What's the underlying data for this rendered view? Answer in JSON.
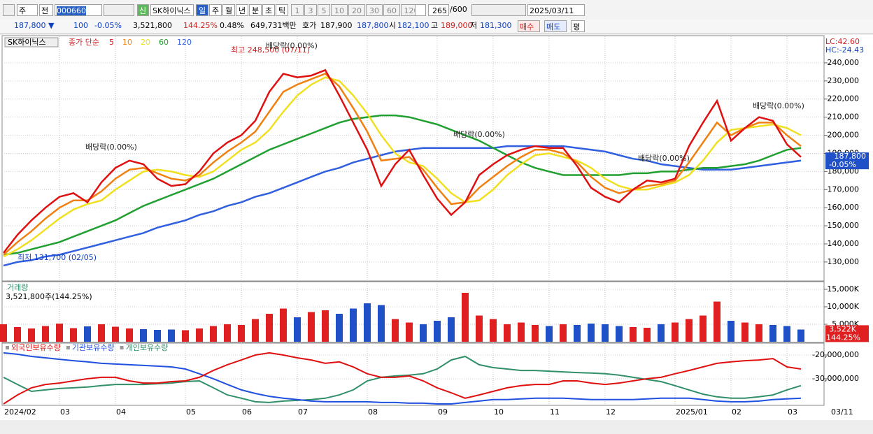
{
  "toolbar": {
    "period": "주",
    "scope": "전",
    "code": "000660",
    "new": "신",
    "name": "SK하이닉스",
    "intervals": [
      "일",
      "주",
      "월",
      "년",
      "분",
      "초",
      "틱"
    ],
    "counts": [
      "1",
      "3",
      "5",
      "10",
      "20",
      "30",
      "60",
      "120"
    ],
    "shown": "265",
    "total": "/600",
    "date": "2025/03/11"
  },
  "quote": {
    "price": "187,800 ▼",
    "change": "100",
    "rate": "-0.05%",
    "volume": "3,521,800",
    "volume_rate": "144.25%",
    "turnover": "0.48%",
    "amount": "649,731백만",
    "bid_label": "호가",
    "bid": "187,900",
    "ask": "187,800",
    "open_label": "시",
    "open": "182,100",
    "high_label": "고",
    "high": "189,000",
    "low_label": "저",
    "low": "181,300",
    "buy": "매수",
    "sell": "매도",
    "eval": "평"
  },
  "chart_data": [
    {
      "type": "line",
      "name": "SK하이닉스",
      "legend_label": "종가 단순",
      "categories": [
        "2024/02",
        null,
        null,
        null,
        "03",
        null,
        null,
        null,
        "04",
        null,
        null,
        null,
        null,
        "05",
        null,
        null,
        null,
        "06",
        null,
        null,
        null,
        "07",
        null,
        null,
        null,
        null,
        "08",
        null,
        null,
        null,
        null,
        "09",
        null,
        null,
        null,
        "10",
        null,
        null,
        null,
        "11",
        null,
        null,
        null,
        "12",
        null,
        null,
        null,
        null,
        "2025/01",
        null,
        null,
        null,
        "02",
        null,
        null,
        null,
        "03",
        null
      ],
      "series": [
        {
          "name": "5",
          "color": "#e01010",
          "values": [
            135000,
            145000,
            153000,
            160000,
            166000,
            168000,
            163000,
            174000,
            182000,
            186000,
            184000,
            176000,
            172000,
            173000,
            180000,
            190000,
            196000,
            200000,
            208000,
            224000,
            234000,
            232000,
            233000,
            236000,
            222000,
            207000,
            192000,
            172000,
            184000,
            192000,
            178000,
            165000,
            156000,
            163000,
            178000,
            184000,
            189000,
            192000,
            194000,
            193000,
            193000,
            183000,
            171000,
            166000,
            163000,
            170000,
            175000,
            174000,
            176000,
            194000,
            207000,
            219000,
            197000,
            204000,
            210000,
            208000,
            195000,
            188000
          ]
        },
        {
          "name": "10",
          "color": "#f08010",
          "values": [
            134000,
            141000,
            147000,
            154000,
            160000,
            164000,
            164000,
            169000,
            176000,
            181000,
            182000,
            179000,
            176000,
            175000,
            178000,
            185000,
            191000,
            196000,
            202000,
            213000,
            224000,
            228000,
            231000,
            234000,
            227000,
            215000,
            202000,
            186000,
            187000,
            188000,
            181000,
            171000,
            162000,
            163000,
            171000,
            177000,
            183000,
            188000,
            192000,
            192000,
            190000,
            185000,
            177000,
            171000,
            168000,
            170000,
            172000,
            173000,
            175000,
            185000,
            196000,
            207000,
            200000,
            204000,
            207000,
            207000,
            200000,
            194000
          ]
        },
        {
          "name": "20",
          "color": "#f0e020",
          "values": [
            133000,
            137000,
            142000,
            148000,
            154000,
            159000,
            162000,
            164000,
            170000,
            175000,
            180000,
            181000,
            180000,
            178000,
            177000,
            180000,
            186000,
            192000,
            196000,
            203000,
            213000,
            222000,
            228000,
            232000,
            230000,
            222000,
            212000,
            200000,
            190000,
            185000,
            183000,
            176000,
            168000,
            163000,
            164000,
            170000,
            178000,
            184000,
            189000,
            190000,
            188000,
            186000,
            182000,
            176000,
            172000,
            170000,
            170000,
            172000,
            174000,
            178000,
            186000,
            196000,
            203000,
            204000,
            205000,
            206000,
            204000,
            200000
          ]
        },
        {
          "name": "60",
          "color": "#20a030",
          "values": [
            134000,
            135000,
            137000,
            139000,
            141000,
            144000,
            147000,
            150000,
            153000,
            157000,
            161000,
            164000,
            167000,
            170000,
            173000,
            176000,
            180000,
            184000,
            188000,
            192000,
            195000,
            198000,
            201000,
            204000,
            207000,
            209000,
            210000,
            211000,
            211000,
            210000,
            208000,
            206000,
            203000,
            200000,
            197000,
            193000,
            189000,
            185000,
            182000,
            180000,
            178000,
            178000,
            178000,
            178000,
            178000,
            179000,
            179000,
            180000,
            180000,
            181000,
            182000,
            182000,
            183000,
            184000,
            186000,
            189000,
            192000,
            193000
          ]
        },
        {
          "name": "120",
          "color": "#3060e0",
          "values": [
            128000,
            130000,
            131000,
            133000,
            134000,
            136000,
            138000,
            140000,
            142000,
            144000,
            146000,
            149000,
            151000,
            153000,
            156000,
            158000,
            161000,
            163000,
            166000,
            168000,
            171000,
            174000,
            177000,
            180000,
            182000,
            185000,
            187000,
            189000,
            191000,
            192000,
            193000,
            193000,
            193000,
            193000,
            193000,
            193000,
            194000,
            194000,
            194000,
            194000,
            194000,
            193000,
            192000,
            191000,
            189000,
            187000,
            186000,
            184000,
            183000,
            182000,
            181000,
            181000,
            181000,
            182000,
            183000,
            184000,
            185000,
            186000
          ]
        }
      ],
      "ylim": [
        120300,
        253100
      ],
      "yticks": [
        {
          "value": 130000,
          "label": "130,000"
        },
        {
          "value": 140000,
          "label": "140,000"
        },
        {
          "value": 150000,
          "label": "150,000"
        },
        {
          "value": 160000,
          "label": "160,000"
        },
        {
          "value": 170000,
          "label": "170,000"
        },
        {
          "value": 180000,
          "label": "180,000"
        },
        {
          "value": 190000,
          "label": "190,000"
        },
        {
          "value": 200000,
          "label": "200,000"
        },
        {
          "value": 210000,
          "label": "210,000"
        },
        {
          "value": 220000,
          "label": "220,000"
        },
        {
          "value": 230000,
          "label": "230,000"
        },
        {
          "value": 240000,
          "label": "240,000"
        }
      ],
      "annotations": [
        "최고 248,500 (07/11)",
        "최저 131,700 (02/05)",
        "배당락(0.00%)",
        "배당락(0.00%)",
        "배당락(0.00%)",
        "배당락(0.00%)",
        "배당락(0.00%)"
      ],
      "lc": "LC:42.60",
      "hc": "HC:-24.43",
      "last": {
        "value": 187800,
        "label": "187,800"
      },
      "last_rate": "-0.05%",
      "cursor_date": "03/11"
    },
    {
      "type": "bar",
      "title": "거래량",
      "subtitle": "3,521,800주(144.25%)",
      "up_color": "#e02020",
      "down_color": "#2050c8",
      "values": [
        5000,
        4200,
        3800,
        4500,
        5200,
        3900,
        4400,
        5000,
        4300,
        3800,
        3600,
        3400,
        3500,
        3300,
        3800,
        4500,
        5000,
        4800,
        6500,
        8000,
        9500,
        7000,
        8500,
        9000,
        8000,
        9500,
        11000,
        10500,
        6500,
        5500,
        5000,
        6000,
        7000,
        14000,
        7500,
        6500,
        5000,
        5500,
        4800,
        4500,
        5000,
        4800,
        5200,
        5000,
        4500,
        4200,
        4000,
        5000,
        5500,
        6500,
        7500,
        11500,
        6000,
        5500,
        5000,
        4800,
        4500,
        3500
      ],
      "ylim": [
        0,
        16800
      ],
      "yticks": [
        {
          "value": 5000,
          "label": "5,000K"
        },
        {
          "value": 10000,
          "label": "10,000K"
        },
        {
          "value": 15000,
          "label": "15,000K"
        }
      ],
      "last": {
        "value": 3522,
        "label": "3,522K"
      },
      "last_rate": "144.25%"
    },
    {
      "type": "line",
      "series": [
        {
          "name": "외국인보유수량",
          "color": "#e01010",
          "values": [
            -40600000,
            -36800000,
            -33800000,
            -32400000,
            -31800000,
            -30900000,
            -30000000,
            -29400000,
            -29400000,
            -30900000,
            -31800000,
            -31800000,
            -31200000,
            -30900000,
            -29400000,
            -26500000,
            -24100000,
            -22100000,
            -20000000,
            -19100000,
            -20000000,
            -21200000,
            -22100000,
            -23500000,
            -22900000,
            -25000000,
            -27900000,
            -29400000,
            -29400000,
            -28800000,
            -30900000,
            -33800000,
            -35900000,
            -38200000,
            -36800000,
            -35300000,
            -33800000,
            -32900000,
            -32400000,
            -32400000,
            -30900000,
            -30900000,
            -31800000,
            -32400000,
            -31800000,
            -30900000,
            -30000000,
            -29400000,
            -27900000,
            -26500000,
            -25000000,
            -23500000,
            -22900000,
            -22400000,
            -22100000,
            -21500000,
            -25000000,
            -25900000
          ]
        },
        {
          "name": "기관보유수량",
          "color": "#2050e0",
          "values": [
            -19100000,
            -19700000,
            -20600000,
            -21200000,
            -21800000,
            -22400000,
            -22900000,
            -23500000,
            -23800000,
            -24100000,
            -24400000,
            -24700000,
            -25000000,
            -25900000,
            -27900000,
            -30000000,
            -32400000,
            -34700000,
            -36200000,
            -37400000,
            -38200000,
            -38800000,
            -39400000,
            -39700000,
            -39700000,
            -39700000,
            -39700000,
            -40000000,
            -40000000,
            -40300000,
            -40300000,
            -40600000,
            -40600000,
            -40000000,
            -39400000,
            -38800000,
            -38800000,
            -38500000,
            -38200000,
            -38200000,
            -38200000,
            -38500000,
            -38800000,
            -38800000,
            -38800000,
            -38800000,
            -38500000,
            -38200000,
            -38200000,
            -38200000,
            -38800000,
            -39400000,
            -39700000,
            -39700000,
            -39400000,
            -38800000,
            -38500000,
            -38200000
          ]
        },
        {
          "name": "개인보유수량",
          "color": "#30906a",
          "values": [
            -29400000,
            -32400000,
            -35300000,
            -34700000,
            -34100000,
            -33800000,
            -33500000,
            -32900000,
            -32400000,
            -32400000,
            -32400000,
            -32100000,
            -31800000,
            -31200000,
            -30900000,
            -33800000,
            -36800000,
            -38200000,
            -39700000,
            -40000000,
            -39400000,
            -39100000,
            -38800000,
            -38200000,
            -36800000,
            -34700000,
            -30900000,
            -29400000,
            -28800000,
            -28500000,
            -27900000,
            -25900000,
            -22100000,
            -20600000,
            -24100000,
            -25300000,
            -25900000,
            -26500000,
            -26500000,
            -26800000,
            -27100000,
            -27400000,
            -27600000,
            -27900000,
            -28500000,
            -29400000,
            -30300000,
            -31200000,
            -32900000,
            -34700000,
            -36500000,
            -37600000,
            -38200000,
            -38200000,
            -37600000,
            -36800000,
            -34700000,
            -32900000
          ]
        }
      ],
      "ylim": [
        -41200000,
        -15300000
      ],
      "yticks": [
        {
          "value": -30000000,
          "label": "-30,000,000"
        },
        {
          "value": -20000000,
          "label": "-20,000,000"
        }
      ]
    }
  ]
}
